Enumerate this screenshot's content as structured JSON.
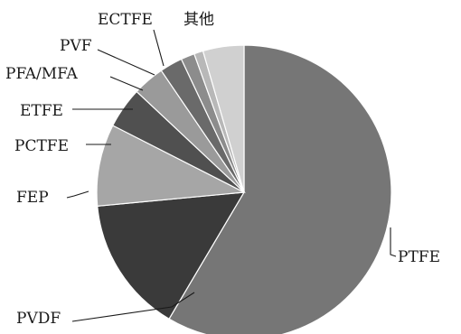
{
  "chart_data": {
    "type": "pie",
    "title": "",
    "start": "top",
    "direction": "clockwise",
    "slices": [
      {
        "label": "PTFE",
        "value": 58.5,
        "color": "#767676"
      },
      {
        "label": "PVDF",
        "value": 15.0,
        "color": "#3a3a3a"
      },
      {
        "label": "FEP",
        "value": 9.0,
        "color": "#a6a6a6"
      },
      {
        "label": "PCTFE",
        "value": 4.5,
        "color": "#505050"
      },
      {
        "label": "ETFE",
        "value": 3.5,
        "color": "#9a9a9a"
      },
      {
        "label": "PFA/MFA",
        "value": 2.5,
        "color": "#6a6a6a"
      },
      {
        "label": "PVF",
        "value": 1.5,
        "color": "#8c8c8c"
      },
      {
        "label": "ECTFE",
        "value": 1.0,
        "color": "#b8b8b8"
      },
      {
        "label": "其他",
        "value": 4.5,
        "color": "#d0d0d0"
      }
    ]
  }
}
